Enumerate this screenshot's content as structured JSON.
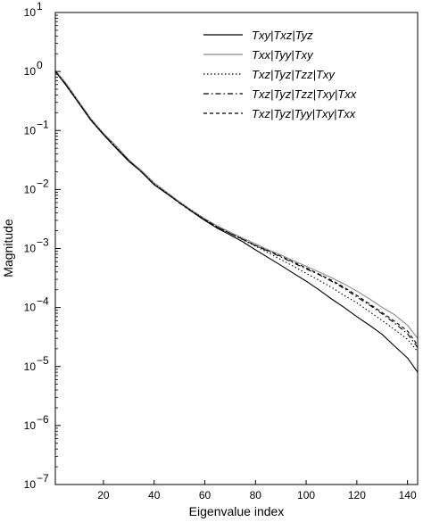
{
  "chart_data": {
    "type": "line",
    "title": "",
    "xlabel": "Eigenvalue index",
    "ylabel": "Magnitude",
    "xlim": [
      1,
      144
    ],
    "ylim": [
      1e-07,
      10
    ],
    "yscale": "log",
    "xticks": [
      20,
      40,
      60,
      80,
      100,
      120,
      140
    ],
    "yticks": [
      {
        "value": 1e-07,
        "base": "10",
        "exp": "−7"
      },
      {
        "value": 1e-06,
        "base": "10",
        "exp": "−6"
      },
      {
        "value": 1e-05,
        "base": "10",
        "exp": "−5"
      },
      {
        "value": 0.0001,
        "base": "10",
        "exp": "−4"
      },
      {
        "value": 0.001,
        "base": "10",
        "exp": "−3"
      },
      {
        "value": 0.01,
        "base": "10",
        "exp": "−2"
      },
      {
        "value": 0.1,
        "base": "10",
        "exp": "−1"
      },
      {
        "value": 1,
        "base": "10",
        "exp": "0"
      },
      {
        "value": 10,
        "base": "10",
        "exp": "1"
      }
    ],
    "grid": false,
    "legend": "top-right",
    "series": [
      {
        "name": "Txy|Txz|Tyz",
        "color": "#000000",
        "dash": "solid",
        "x": [
          1,
          5,
          10,
          15,
          20,
          25,
          30,
          35,
          40,
          45,
          50,
          55,
          60,
          65,
          70,
          75,
          80,
          85,
          90,
          95,
          100,
          105,
          110,
          115,
          120,
          125,
          130,
          135,
          140,
          144
        ],
        "y": [
          1.0,
          0.6,
          0.3,
          0.15,
          0.085,
          0.05,
          0.03,
          0.02,
          0.012,
          0.0085,
          0.006,
          0.0042,
          0.003,
          0.0022,
          0.0017,
          0.0013,
          0.00095,
          0.0007,
          0.00052,
          0.00038,
          0.00028,
          0.0002,
          0.00014,
          0.0001,
          7e-05,
          5e-05,
          3.5e-05,
          2.2e-05,
          1.4e-05,
          8e-06
        ]
      },
      {
        "name": "Txx|Tyy|Txy",
        "color": "#8a8a8a",
        "dash": "solid",
        "x": [
          1,
          5,
          10,
          15,
          20,
          25,
          30,
          35,
          40,
          45,
          50,
          55,
          60,
          65,
          70,
          75,
          80,
          85,
          90,
          95,
          100,
          105,
          110,
          115,
          120,
          125,
          130,
          135,
          140,
          144
        ],
        "y": [
          1.05,
          0.65,
          0.32,
          0.16,
          0.09,
          0.055,
          0.032,
          0.021,
          0.013,
          0.009,
          0.0062,
          0.0044,
          0.0032,
          0.0024,
          0.0019,
          0.0015,
          0.0012,
          0.00095,
          0.00078,
          0.00062,
          0.0005,
          0.0004,
          0.00032,
          0.00025,
          0.00019,
          0.00014,
          0.0001,
          7.5e-05,
          5e-05,
          3e-05
        ]
      },
      {
        "name": "Txz|Tyz|Tzz|Txy",
        "color": "#000000",
        "dash": "dotted",
        "x": [
          1,
          5,
          10,
          15,
          20,
          25,
          30,
          35,
          40,
          45,
          50,
          55,
          60,
          65,
          70,
          75,
          80,
          85,
          90,
          95,
          100,
          105,
          110,
          115,
          120,
          125,
          130,
          135,
          140,
          144
        ],
        "y": [
          1.0,
          0.62,
          0.31,
          0.155,
          0.087,
          0.052,
          0.031,
          0.02,
          0.0125,
          0.0087,
          0.006,
          0.0043,
          0.0031,
          0.0023,
          0.0018,
          0.0014,
          0.0011,
          0.00085,
          0.00065,
          0.0005,
          0.00038,
          0.00029,
          0.00022,
          0.00016,
          0.00012,
          8.5e-05,
          6e-05,
          4.2e-05,
          2.9e-05,
          1.8e-05
        ]
      },
      {
        "name": "Txz|Tyz|Tzz|Txy|Txx",
        "color": "#000000",
        "dash": "dashdot",
        "x": [
          1,
          5,
          10,
          15,
          20,
          25,
          30,
          35,
          40,
          45,
          50,
          55,
          60,
          65,
          70,
          75,
          80,
          85,
          90,
          95,
          100,
          105,
          110,
          115,
          120,
          125,
          130,
          135,
          140,
          144
        ],
        "y": [
          1.0,
          0.61,
          0.305,
          0.152,
          0.086,
          0.051,
          0.0305,
          0.0198,
          0.0122,
          0.0086,
          0.0059,
          0.0042,
          0.003,
          0.0023,
          0.0018,
          0.00142,
          0.00112,
          0.0009,
          0.00072,
          0.00057,
          0.00045,
          0.00036,
          0.00028,
          0.00021,
          0.00015,
          0.00011,
          7.8e-05,
          5.4e-05,
          3.6e-05,
          2.1e-05
        ]
      },
      {
        "name": "Txz|Tyz|Tyy|Txy|Txx",
        "color": "#000000",
        "dash": "dashed",
        "x": [
          1,
          5,
          10,
          15,
          20,
          25,
          30,
          35,
          40,
          45,
          50,
          55,
          60,
          65,
          70,
          75,
          80,
          85,
          90,
          95,
          100,
          105,
          110,
          115,
          120,
          125,
          130,
          135,
          140,
          144
        ],
        "y": [
          1.0,
          0.6,
          0.3,
          0.15,
          0.086,
          0.051,
          0.031,
          0.0198,
          0.0122,
          0.0085,
          0.0059,
          0.0042,
          0.0031,
          0.0023,
          0.0018,
          0.00143,
          0.00113,
          0.00092,
          0.00074,
          0.00059,
          0.00047,
          0.00037,
          0.00029,
          0.00022,
          0.00016,
          0.000115,
          8.2e-05,
          5.8e-05,
          4e-05,
          2.3e-05
        ]
      }
    ]
  }
}
